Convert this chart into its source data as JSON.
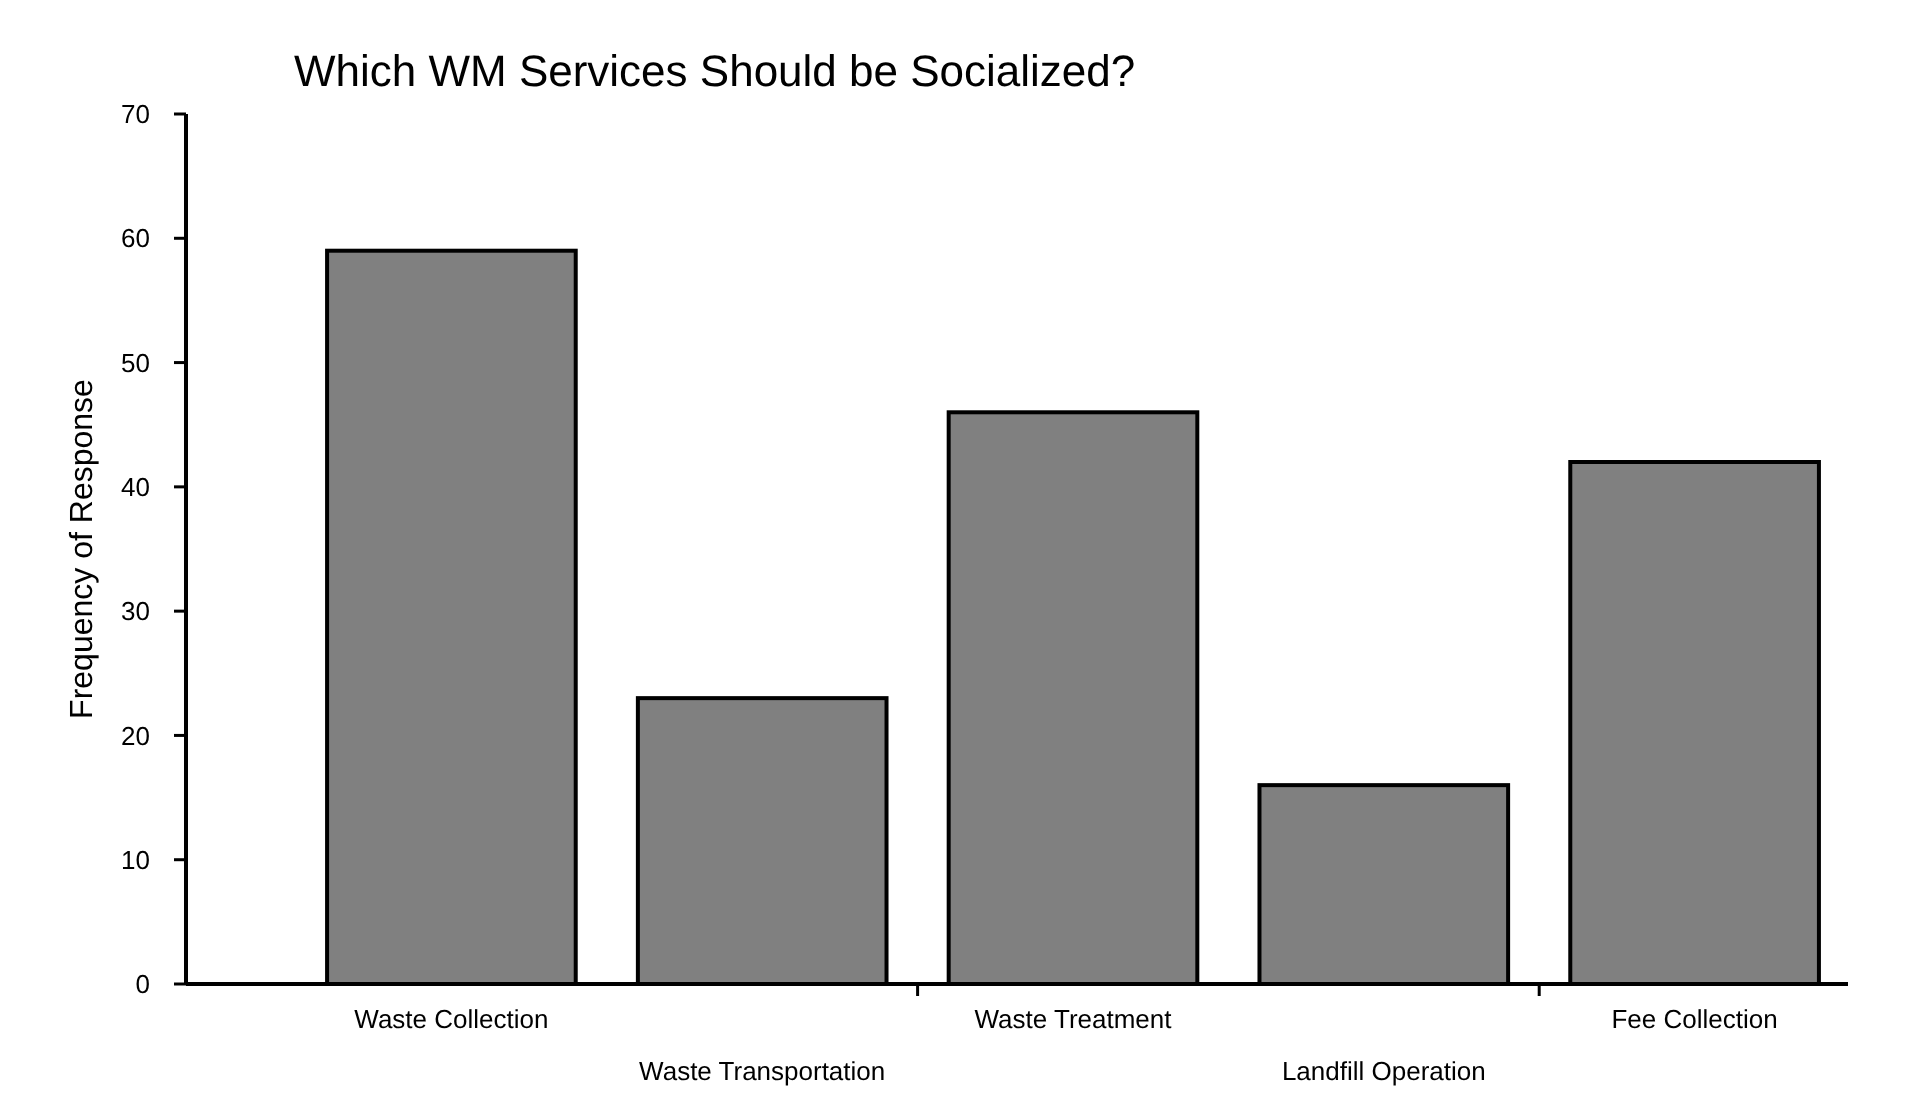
{
  "chart_data": {
    "type": "bar",
    "title": "Which WM Services Should be Socialized?",
    "ylabel": "Frequency of Response",
    "categories": [
      "Waste Collection",
      "Waste Transportation",
      "Waste Treatment",
      "Landfill Operation",
      "Fee Collection"
    ],
    "values": [
      59,
      23,
      46,
      16,
      42
    ],
    "color": "#808080",
    "ylim": [
      0,
      70
    ],
    "yticks": [
      0,
      10,
      20,
      30,
      40,
      50,
      60,
      70
    ],
    "grid": false
  }
}
